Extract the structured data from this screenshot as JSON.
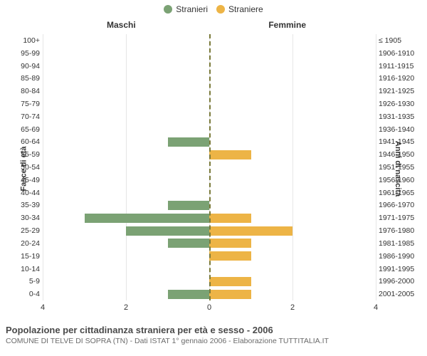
{
  "legend": {
    "male": {
      "label": "Stranieri",
      "color": "#7ba274"
    },
    "female": {
      "label": "Straniere",
      "color": "#edb446"
    }
  },
  "chart": {
    "type": "population-pyramid",
    "col_title_left": "Maschi",
    "col_title_right": "Femmine",
    "y_left_title": "Fasce di età",
    "y_right_title": "Anni di nascita",
    "x_max": 4,
    "x_ticks": [
      4,
      2,
      0,
      2,
      4
    ],
    "grid_color": "#e6e6e6",
    "center_line_color": "#7a7a3a",
    "background_color": "#ffffff",
    "label_fontsize": 10.5,
    "title_fontsize": 12,
    "rows": [
      {
        "age": "100+",
        "birth": "≤ 1905",
        "m": 0,
        "f": 0
      },
      {
        "age": "95-99",
        "birth": "1906-1910",
        "m": 0,
        "f": 0
      },
      {
        "age": "90-94",
        "birth": "1911-1915",
        "m": 0,
        "f": 0
      },
      {
        "age": "85-89",
        "birth": "1916-1920",
        "m": 0,
        "f": 0
      },
      {
        "age": "80-84",
        "birth": "1921-1925",
        "m": 0,
        "f": 0
      },
      {
        "age": "75-79",
        "birth": "1926-1930",
        "m": 0,
        "f": 0
      },
      {
        "age": "70-74",
        "birth": "1931-1935",
        "m": 0,
        "f": 0
      },
      {
        "age": "65-69",
        "birth": "1936-1940",
        "m": 0,
        "f": 0
      },
      {
        "age": "60-64",
        "birth": "1941-1945",
        "m": 1,
        "f": 0
      },
      {
        "age": "55-59",
        "birth": "1946-1950",
        "m": 0,
        "f": 1
      },
      {
        "age": "50-54",
        "birth": "1951-1955",
        "m": 0,
        "f": 0
      },
      {
        "age": "45-49",
        "birth": "1956-1960",
        "m": 0,
        "f": 0
      },
      {
        "age": "40-44",
        "birth": "1961-1965",
        "m": 0,
        "f": 0
      },
      {
        "age": "35-39",
        "birth": "1966-1970",
        "m": 1,
        "f": 0
      },
      {
        "age": "30-34",
        "birth": "1971-1975",
        "m": 3,
        "f": 1
      },
      {
        "age": "25-29",
        "birth": "1976-1980",
        "m": 2,
        "f": 2
      },
      {
        "age": "20-24",
        "birth": "1981-1985",
        "m": 1,
        "f": 1
      },
      {
        "age": "15-19",
        "birth": "1986-1990",
        "m": 0,
        "f": 1
      },
      {
        "age": "10-14",
        "birth": "1991-1995",
        "m": 0,
        "f": 0
      },
      {
        "age": "5-9",
        "birth": "1996-2000",
        "m": 0,
        "f": 1
      },
      {
        "age": "0-4",
        "birth": "2001-2005",
        "m": 1,
        "f": 1
      }
    ]
  },
  "caption": {
    "title": "Popolazione per cittadinanza straniera per età e sesso - 2006",
    "subtitle": "COMUNE DI TELVE DI SOPRA (TN) - Dati ISTAT 1° gennaio 2006 - Elaborazione TUTTITALIA.IT"
  }
}
